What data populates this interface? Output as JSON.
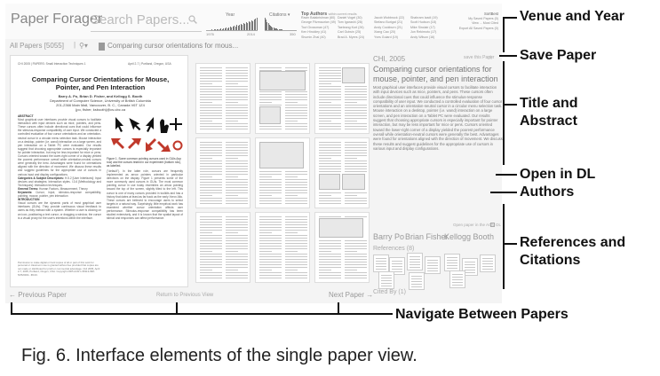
{
  "app": {
    "title": "Paper Forager",
    "search_placeholder": "Search Papers..."
  },
  "filters": {
    "year_label": "Year",
    "year_min": "1976",
    "year_max": "2014",
    "year_counts": [
      1,
      1,
      0,
      1,
      2,
      1,
      2,
      2,
      3,
      2,
      3,
      4,
      3,
      5,
      4,
      6,
      5,
      7,
      8,
      6,
      9,
      10,
      8,
      12,
      11,
      13,
      14,
      12,
      16,
      15,
      18,
      17,
      20,
      19,
      22,
      21,
      24,
      26,
      28
    ],
    "citations_label": "Citations",
    "citations_max": "350",
    "citation_counts": [
      28,
      24,
      19,
      16,
      13,
      10,
      8,
      7,
      6,
      5,
      4,
      4,
      3,
      3,
      2,
      2,
      2,
      1,
      1,
      1,
      1,
      1,
      1,
      1,
      1,
      1,
      1,
      1,
      1,
      1
    ],
    "top_authors_label": "Top Authors",
    "top_authors_hint": "within current results",
    "author_columns": [
      [
        "Ravin Balakrishnan (60)",
        "George Fitzmaurice (49)",
        "Tovi Grossman (47)",
        "Ken Hinckley (41)",
        "Shumin Zhai (40)"
      ],
      [
        "Daniel Vogel (30)",
        "Tom Igarashi (28)",
        "Taeleang Kurt (26)",
        "Carl Gutwin (25)",
        "Brad A. Myers (24)"
      ],
      [
        "Jacob Wobbrock (22)",
        "Stefano Burigat (21)",
        "Andy Cockburn (21)",
        "Xiang Cao (20)",
        "Yves Guiard (19)"
      ],
      [
        "Shahram Izadi (19)",
        "Scott Hudson (18)",
        "Mike Sinclair (17)",
        "Jun Rekimoto (17)",
        "Andy Wilson (16)"
      ]
    ],
    "venue_label": "SortBest",
    "venue_lines": [
      "My Saved Papers (0)",
      "View ... Most Cited",
      "Export All Saved Papers (0)"
    ]
  },
  "breadcrumb": {
    "all_papers": "All Papers",
    "count": "[5055]",
    "paper": "Comparing cursor orientations for mous..."
  },
  "front_page": {
    "header_left": "CHI 2005  |  PAPERS: Small Interaction Techniques 1",
    "header_right": "April 2-7  |  Portland, Oregon, USA",
    "title": "Comparing Cursor Orientations for Mouse, Pointer, and Pen Interaction",
    "authors": "Barry A. Po, Brian D. Fisher, and Kellogg S. Booth",
    "affiliation": "Department of Computer Science, University of British Columbia",
    "address": "201-2366 Main Mall, Vancouver, B. C., Canada V6T 1Z4",
    "emails": "{po, fisher, ksbooth}@cs.ubc.ca",
    "abstract_heading": "ABSTRACT",
    "abstract_body": "Most graphical user interfaces provide visual cursors to facilitate interaction with input devices such as mice, pointers, and pens. These cursors often include directional cues that could influence the stimulus-response compatibility of user input. We conducted a controlled evaluation of four cursor orientations and an orientation-neutral cursor in a circular menu selection task. Mouse interaction on a desktop, pointer (i.e. wand) interaction on a large screen, and pen interaction on a Tablet PC were evaluated. Our results suggest that choosing appropriate cursors is especially important for pointer interaction, but may be less important for mice or pens. Cursors oriented toward the lower-right corner of a display yielded the poorest performance overall while orientation-neutral cursors were generally the best. Advantages were found for orientations aligned with the direction of movement. We discuss these results and suggest guidelines for the appropriate use of cursors in various input and display configurations.",
    "categories_heading": "Categories & Subject Descriptors:",
    "categories_body": "H.5.2 [User Interfaces]: Input devices and strategies; Interaction styles. I.3.6 [Methodology and Techniques]: Interaction techniques.",
    "terms_heading": "General Terms:",
    "terms_body": "Human Factors, Measurement, Theory",
    "keywords_heading": "Keywords:",
    "keywords_body": "Cursor, input, stimulus-response compatibility, pointing, mouse, pointer, pen interaction",
    "intro_heading": "INTRODUCTION",
    "intro_body": "Visual cursors are the dynamic parts of most graphical user interfaces (GUIs). They provide continuous visual feedback to users as they interact with a system. Whether a user is clicking on an icon, positioning a text cursor, or dragging a window, the cursor is a visual proxy for the user's intentions within the interface.",
    "figure_caption": "Figure 1. Some common pointing cursors used in GUIs (top row) and the cursors tested in our experiment (bottom row), as labelled.",
    "col2_body": "(\"default\"). In the latter role, cursors are frequently implemented as arrow pointers oriented in particular directions on the display. Figure 1 presents some of the more commonly used cursors in GUIs. The most common pointing cursor in use today resembles an arrow pointing toward the top of the screen, slightly tilted to the left. This cursor is one of many cursors provided in toolkits and has a history that dates at least as far back as the early Xerox Alto. These cursors are believed to encourage users to select targets in a natural way. Surprisingly, little empirical work has examined whether cursor orientation affects user performance. Stimulus-response compatibility has been studied extensively, and it is known that the spatial layout of stimuli and responses can affect performance.",
    "footnote": "Permission to make digital or hard copies of all or part of this work for personal or classroom use is granted without fee provided that copies are not made or distributed for profit or commercial advantage. CHI 2005, April 2-7, 2005, Portland, Oregon, USA. Copyright 2005 ACM 1-58113-998-5/05/0004...$5.00."
  },
  "detail": {
    "venue_year": "CHI, 2005",
    "save_label": "save this Paper",
    "title": "Comparing cursor orientations for mouse, pointer, and pen interaction",
    "abstract": "Most graphical user interfaces provide visual cursors to facilitate interaction with input devices such as mice, pointers, and pens. These cursors often include directional cues that could influence the stimulus-response compatibility of user input. We conducted a controlled evaluation of four cursor orientations and an orientation-neutral cursor in a circular menu selection task. Mouse interaction on a desktop, pointer (i.e. wand) interaction on a large screen, and pen interaction on a Tablet PC were evaluated. Our results suggest that choosing appropriate cursors is especially important for pointer interaction, but may be less important for mice or pens. Cursors oriented toward the lower-right corner of a display yielded the poorest performance overall while orientation-neutral cursors were generally the best. Advantages were found for orientations aligned with the direction of movement. We discuss these results and suggest guidelines for the appropriate use of cursors in various input and display configurations.",
    "open_label": "Open paper in the ACM DL",
    "authors": [
      "Barry Po",
      "Brian Fisher",
      "Kellogg Booth"
    ],
    "references_label": "References (8)",
    "cited_label": "Cited By (1)"
  },
  "nav": {
    "previous": "← Previous Paper",
    "return": "Return to Previous View",
    "next": "Next Paper →"
  },
  "annotations": {
    "venue_year": "Venue and Year",
    "save_paper": "Save Paper",
    "title_abstract": "Title and Abstract",
    "open_dl": "Open in DL",
    "authors": "Authors",
    "refs_citations": "References and Citations",
    "navigate": "Navigate Between Papers"
  },
  "caption": "Fig. 6.   Interface elements of the single paper view."
}
